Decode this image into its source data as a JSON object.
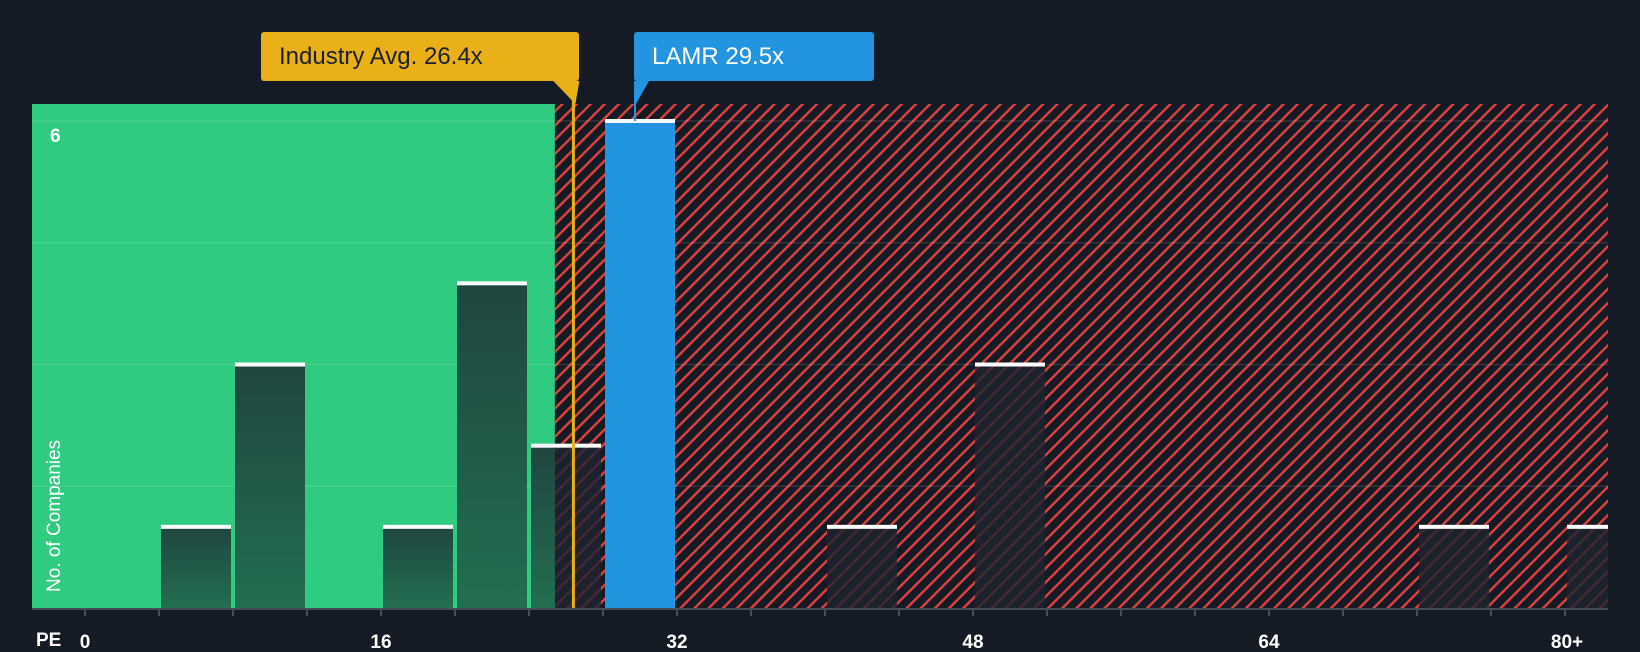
{
  "chart_data": {
    "type": "bar",
    "title": "",
    "xlabel": "PE",
    "ylabel": "No. of Companies",
    "x_ticks": [
      "0",
      "16",
      "32",
      "48",
      "64",
      "80+"
    ],
    "x_tick_values": [
      0,
      16,
      32,
      48,
      64,
      80
    ],
    "y_tick_label": "6",
    "ylim": [
      0,
      6
    ],
    "xlim": [
      -2.9,
      82.3
    ],
    "bin_width": 4,
    "bins": [
      {
        "range": "4-8",
        "start": 4,
        "value": 1
      },
      {
        "range": "8-12",
        "start": 8,
        "value": 3
      },
      {
        "range": "16-20",
        "start": 16,
        "value": 1
      },
      {
        "range": "20-24",
        "start": 20,
        "value": 4
      },
      {
        "range": "24-28",
        "start": 24,
        "value": 2
      },
      {
        "range": "28-32",
        "start": 28,
        "value": 6,
        "highlight": true
      },
      {
        "range": "40-44",
        "start": 40,
        "value": 1
      },
      {
        "range": "48-52",
        "start": 48,
        "value": 3
      },
      {
        "range": "72-76",
        "start": 72,
        "value": 1
      },
      {
        "range": "80+",
        "start": 80,
        "value": 1
      }
    ],
    "annotations": [
      {
        "label": "Industry Avg. 26.4x",
        "value": 26.4,
        "color": "#e9b018"
      },
      {
        "label": "LAMR 29.5x",
        "value": 29.5,
        "color": "#2394e0"
      }
    ],
    "zones": {
      "undervalued_until": 25.4,
      "undervalued_color": "#2ecb80",
      "overvalued_stripe_color": "#e0413f"
    },
    "grid": true
  },
  "callouts": {
    "industry": "Industry Avg. 26.4x",
    "company": "LAMR 29.5x"
  },
  "axis": {
    "x_title": "PE",
    "y_title": "No. of Companies",
    "y_top_label": "6"
  }
}
